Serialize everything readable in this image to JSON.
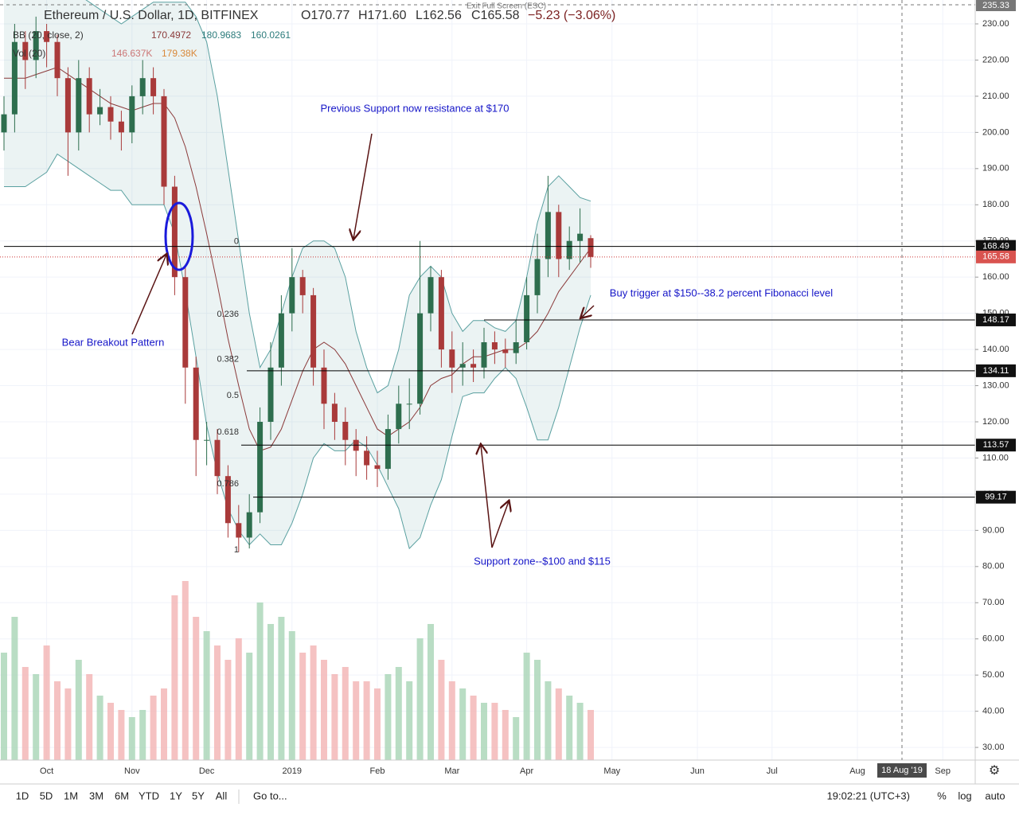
{
  "header": {
    "symbol": "Ethereum / U.S. Dollar, 1D, BITFINEX",
    "open": "O170.77",
    "high": "H171.60",
    "low": "L162.56",
    "close": "C165.58",
    "change": "−5.23 (−3.06%)",
    "bb_label": "BB (20, close, 2)",
    "bb_values": [
      "170.4972",
      "180.9683",
      "160.0261"
    ],
    "vol_label": "Vol (20)",
    "vol_values": [
      "146.637K",
      "179.38K"
    ],
    "exit": "Exit Full Screen (ESC)"
  },
  "chart_data": {
    "type": "candlestick",
    "categories": [
      null,
      null,
      null,
      null,
      "Oct",
      null,
      null,
      null,
      null,
      null,
      null,
      null,
      "Nov",
      null,
      null,
      null,
      null,
      null,
      null,
      "Dec",
      null,
      null,
      null,
      null,
      null,
      null,
      null,
      "2019",
      null,
      null,
      null,
      null,
      null,
      null,
      null,
      "Feb",
      null,
      null,
      null,
      null,
      null,
      null,
      "Mar",
      null,
      null,
      null,
      null,
      null,
      null,
      "Apr",
      null,
      null,
      null,
      null,
      null,
      null,
      null,
      "May",
      null,
      null,
      null,
      null,
      null,
      null,
      null,
      "Jun",
      null,
      null,
      null,
      null,
      null,
      null,
      "Jul",
      null,
      null,
      null,
      null,
      null,
      null,
      null,
      "Aug",
      null,
      null,
      null,
      null,
      null,
      null,
      null,
      "Sep",
      null,
      null
    ],
    "open": [
      200,
      205,
      225,
      220,
      228,
      225,
      215,
      200,
      215,
      205,
      207,
      203,
      200,
      210,
      215,
      210,
      185,
      160,
      135,
      115,
      115,
      105,
      92,
      88,
      95,
      120,
      135,
      150,
      160,
      155,
      135,
      125,
      120,
      115,
      112,
      108,
      107,
      118,
      125,
      125,
      150,
      160,
      140,
      135,
      136,
      135,
      142,
      140,
      139,
      142,
      155,
      165,
      178,
      165,
      170,
      170.77,
      null,
      null,
      null,
      null,
      null,
      null,
      null,
      null,
      null,
      null,
      null,
      null,
      null,
      null,
      null,
      null,
      null,
      null,
      null,
      null,
      null,
      null,
      null,
      null,
      null,
      null,
      null,
      null,
      null,
      null,
      null,
      null,
      null,
      null,
      null
    ],
    "high": [
      210,
      230,
      228,
      232,
      230,
      227,
      218,
      220,
      218,
      212,
      210,
      206,
      213,
      220,
      218,
      212,
      188,
      163,
      138,
      120,
      118,
      108,
      97,
      100,
      124,
      142,
      155,
      168,
      162,
      157,
      140,
      128,
      124,
      118,
      116,
      112,
      122,
      130,
      132,
      170,
      163,
      162,
      145,
      142,
      140,
      146,
      145,
      143,
      148,
      160,
      172,
      188,
      180,
      174,
      179,
      171.6,
      null,
      null,
      null,
      null,
      null,
      null,
      null,
      null,
      null,
      null,
      null,
      null,
      null,
      null,
      null,
      null,
      null,
      null,
      null,
      null,
      null,
      null,
      null,
      null,
      null,
      null,
      null,
      null,
      null,
      null,
      null,
      null,
      null,
      null,
      null
    ],
    "low": [
      195,
      200,
      212,
      215,
      218,
      210,
      188,
      195,
      200,
      202,
      198,
      195,
      197,
      205,
      205,
      180,
      155,
      125,
      105,
      108,
      100,
      88,
      84,
      85,
      92,
      115,
      130,
      145,
      150,
      130,
      118,
      115,
      108,
      105,
      104,
      102,
      104,
      114,
      118,
      122,
      145,
      135,
      128,
      130,
      131,
      132,
      136,
      135,
      136,
      140,
      150,
      160,
      160,
      162,
      164,
      162.56,
      null,
      null,
      null,
      null,
      null,
      null,
      null,
      null,
      null,
      null,
      null,
      null,
      null,
      null,
      null,
      null,
      null,
      null,
      null,
      null,
      null,
      null,
      null,
      null,
      null,
      null,
      null,
      null,
      null,
      null,
      null,
      null,
      null,
      null,
      null
    ],
    "close": [
      205,
      225,
      220,
      228,
      225,
      215,
      200,
      215,
      205,
      207,
      203,
      200,
      210,
      215,
      210,
      185,
      160,
      135,
      115,
      115,
      105,
      92,
      88,
      95,
      120,
      135,
      150,
      160,
      155,
      135,
      125,
      120,
      115,
      112,
      108,
      107,
      118,
      125,
      125,
      150,
      160,
      140,
      135,
      136,
      135,
      142,
      140,
      139,
      142,
      155,
      165,
      178,
      165,
      170,
      172,
      165.58,
      null,
      null,
      null,
      null,
      null,
      null,
      null,
      null,
      null,
      null,
      null,
      null,
      null,
      null,
      null,
      null,
      null,
      null,
      null,
      null,
      null,
      null,
      null,
      null,
      null,
      null,
      null,
      null,
      null,
      null,
      null,
      null,
      null,
      null,
      null
    ],
    "volume": [
      150,
      200,
      130,
      120,
      160,
      110,
      100,
      140,
      120,
      90,
      80,
      70,
      60,
      70,
      90,
      100,
      230,
      250,
      200,
      180,
      160,
      140,
      170,
      150,
      220,
      190,
      200,
      180,
      150,
      160,
      140,
      120,
      130,
      110,
      110,
      100,
      120,
      130,
      110,
      170,
      190,
      140,
      110,
      100,
      90,
      80,
      80,
      70,
      60,
      150,
      140,
      110,
      100,
      90,
      80,
      70,
      null,
      null,
      null,
      null,
      null,
      null,
      null,
      null,
      null,
      null,
      null,
      null,
      null,
      null,
      null,
      null,
      null,
      null,
      null,
      null,
      null,
      null,
      null,
      null,
      null,
      null,
      null,
      null,
      null,
      null,
      null,
      null,
      null,
      null,
      null
    ],
    "bollinger": {
      "upper": [
        245,
        245,
        245,
        245,
        245,
        242,
        240,
        238,
        236,
        234,
        232,
        230,
        232,
        234,
        236,
        236,
        236,
        236,
        232,
        225,
        210,
        190,
        170,
        150,
        135,
        140,
        150,
        160,
        168,
        170,
        170,
        168,
        160,
        145,
        135,
        128,
        130,
        140,
        155,
        160,
        163,
        160,
        150,
        145,
        148,
        148,
        146,
        145,
        148,
        160,
        175,
        185,
        188,
        185,
        182,
        181,
        null,
        null,
        null,
        null,
        null,
        null,
        null,
        null,
        null,
        null,
        null,
        null,
        null,
        null,
        null,
        null,
        null,
        null,
        null,
        null,
        null,
        null,
        null,
        null,
        null,
        null,
        null,
        null,
        null,
        null,
        null,
        null,
        null,
        null,
        null
      ],
      "basis": [
        215,
        215,
        215,
        216,
        217,
        218,
        216,
        214,
        212,
        210,
        208,
        207,
        206,
        207,
        208,
        208,
        204,
        196,
        185,
        172,
        158,
        143,
        130,
        118,
        112,
        113,
        118,
        126,
        134,
        140,
        142,
        140,
        136,
        130,
        124,
        118,
        116,
        118,
        120,
        124,
        130,
        132,
        133,
        136,
        138,
        138,
        139,
        140,
        140,
        142,
        145,
        150,
        156,
        160,
        164,
        168,
        null,
        null,
        null,
        null,
        null,
        null,
        null,
        null,
        null,
        null,
        null,
        null,
        null,
        null,
        null,
        null,
        null,
        null,
        null,
        null,
        null,
        null,
        null,
        null,
        null,
        null,
        null,
        null,
        null,
        null,
        null,
        null,
        null,
        null,
        null
      ],
      "lower": [
        185,
        185,
        185,
        187,
        189,
        194,
        192,
        190,
        188,
        186,
        184,
        184,
        180,
        180,
        180,
        180,
        172,
        156,
        138,
        119,
        106,
        96,
        90,
        86,
        89,
        86,
        86,
        92,
        100,
        110,
        114,
        112,
        112,
        115,
        113,
        108,
        102,
        96,
        85,
        88,
        97,
        104,
        116,
        127,
        128,
        128,
        132,
        135,
        132,
        124,
        115,
        115,
        124,
        135,
        146,
        155,
        null,
        null,
        null,
        null,
        null,
        null,
        null,
        null,
        null,
        null,
        null,
        null,
        null,
        null,
        null,
        null,
        null,
        null,
        null,
        null,
        null,
        null,
        null,
        null,
        null,
        null,
        null,
        null,
        null,
        null,
        null,
        null,
        null,
        null,
        null
      ]
    },
    "up_color": "#2e6e4e",
    "down_color": "#a93a3a",
    "band_color": "#5aa0a0",
    "basis_color": "#8b3a3a",
    "ylim": [
      26.5,
      236.6
    ],
    "yticks": [
      {
        "value": 30,
        "label": "30.00"
      },
      {
        "value": 40,
        "label": "40.00"
      },
      {
        "value": 50,
        "label": "50.00"
      },
      {
        "value": 60,
        "label": "60.00"
      },
      {
        "value": 70,
        "label": "70.00"
      },
      {
        "value": 80,
        "label": "80.00"
      },
      {
        "value": 90,
        "label": "90.00"
      },
      {
        "value": 100,
        "label": "100.00"
      },
      {
        "value": 110,
        "label": "110.00"
      },
      {
        "value": 120,
        "label": "120.00"
      },
      {
        "value": 130,
        "label": "130.00"
      },
      {
        "value": 140,
        "label": "140.00"
      },
      {
        "value": 150,
        "label": "150.00"
      },
      {
        "value": 160,
        "label": "160.00"
      },
      {
        "value": 170,
        "label": "170.00"
      },
      {
        "value": 180,
        "label": "180.00"
      },
      {
        "value": 190,
        "label": "190.00"
      },
      {
        "value": 200,
        "label": "200.00"
      },
      {
        "value": 210,
        "label": "210.00"
      },
      {
        "value": 220,
        "label": "220.00"
      },
      {
        "value": 230,
        "label": "230.00"
      }
    ],
    "grid": true,
    "price_levels": [
      168.49,
      148.17,
      134.11,
      113.57,
      99.17
    ],
    "last_price": 165.58,
    "top_price": 235.33,
    "fib": {
      "levels": [
        0,
        0.236,
        0.382,
        0.5,
        0.618,
        0.786,
        1
      ],
      "range": [
        84.6,
        169.8
      ]
    },
    "annotations": [
      "Previous Support now resistance at $170",
      "Bear Breakout Pattern",
      "Buy trigger at $150--38.2 percent Fibonacci level",
      "Support zone--$100 and $115"
    ],
    "crosshair_label": "18 Aug '19"
  },
  "toolbar": {
    "ranges": [
      "1D",
      "5D",
      "1M",
      "3M",
      "6M",
      "YTD",
      "1Y",
      "5Y",
      "All"
    ],
    "goto": "Go to...",
    "time": "19:02:21 (UTC+3)",
    "options": [
      "%",
      "log",
      "auto"
    ]
  }
}
